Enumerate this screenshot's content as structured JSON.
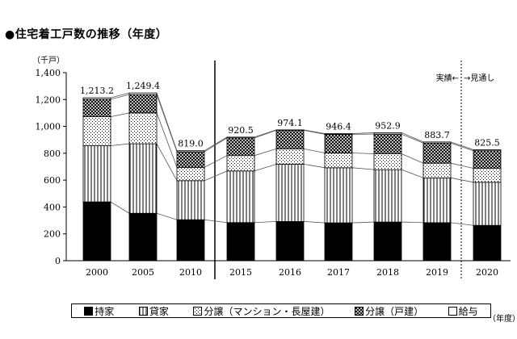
{
  "title": "●住宅着工戸数の推移（年度）",
  "chart_data": {
    "type": "bar",
    "stacked": true,
    "title": "住宅着工戸数の推移（年度）",
    "yunit": "（千戸）",
    "xunit": "（年度）",
    "ylim": [
      0,
      1400
    ],
    "yticks": [
      0,
      200,
      400,
      600,
      800,
      1000,
      1200,
      1400
    ],
    "ytick_labels": [
      "0",
      "200",
      "400",
      "600",
      "800",
      "1,000",
      "1,200",
      "1,400"
    ],
    "categories": [
      "2000",
      "2005",
      "2010",
      "2015",
      "2016",
      "2017",
      "2018",
      "2019",
      "2020"
    ],
    "totals": [
      1213.2,
      1249.4,
      819.0,
      920.5,
      974.1,
      946.4,
      952.9,
      883.7,
      825.5
    ],
    "total_labels": [
      "1,213.2",
      "1,249.4",
      "819.0",
      "920.5",
      "974.1",
      "946.4",
      "952.9",
      "883.7",
      "825.5"
    ],
    "series": [
      {
        "name": "持家",
        "pattern": "solid",
        "values": [
          438,
          353,
          305,
          284,
          292,
          282,
          288,
          283,
          263
        ]
      },
      {
        "name": "貸家",
        "pattern": "vlines",
        "values": [
          418,
          518,
          291,
          384,
          427,
          410,
          390,
          334,
          321
        ]
      },
      {
        "name": "分譲（マンション・長屋建）",
        "pattern": "dots",
        "values": [
          216,
          229,
          99,
          115,
          114,
          110,
          118,
          109,
          104
        ]
      },
      {
        "name": "分譲（戸建）",
        "pattern": "crosshatch",
        "values": [
          130,
          137,
          116,
          131,
          138,
          139,
          147,
          150,
          131
        ]
      },
      {
        "name": "給与",
        "pattern": "white",
        "values": [
          11,
          12,
          8,
          6,
          3,
          5,
          10,
          8,
          7
        ]
      }
    ],
    "annotations": {
      "actual_label": "実績←",
      "forecast_label": "→見通し"
    },
    "legend_position": "bottom"
  }
}
